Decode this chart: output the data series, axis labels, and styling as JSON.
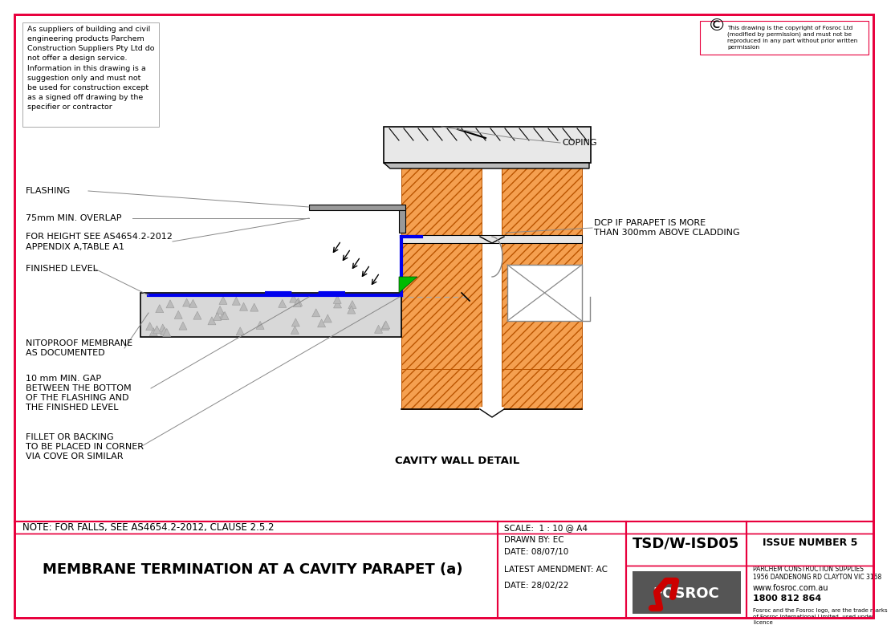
{
  "title": "MEMBRANE TERMINATION AT A CAVITY PARAPET (a)",
  "note": "NOTE: FOR FALLS, SEE AS4654.2-2012, CLAUSE 2.5.2",
  "scale": "SCALE:  1 : 10 @ A4",
  "drawn_by": "DRAWN BY: EC",
  "date": "DATE: 08/07/10",
  "latest_amendment": "LATEST AMENDMENT: AC",
  "date2": "DATE: 28/02/22",
  "drawing_number": "TSD/W-ISD05",
  "issue": "ISSUE NUMBER 5",
  "disclaimer_text": "As suppliers of building and civil\nengineering products Parchem\nConstruction Suppliers Pty Ltd do\nnot offer a design service.\nInformation in this drawing is a\nsuggestion only and must not\nbe used for construction except\nas a signed off drawing by the\nspecifier or contractor",
  "copyright_text": "This drawing is the copyright of Fosroc Ltd\n(modified by permission) and must not be\nreproduced in any part without prior written\npermission",
  "company_line1": "PARCHEM CONSTRUCTION SUPPLIES",
  "company_line2": "1956 DANDENONG RD CLAYTON VIC 3168",
  "website": "www.fosroc.com.au",
  "phone": "1800 812 864",
  "trademark": "Fosroc and the Fosroc logo, are the trade marks\nof Fosroc International Limited, used under\nlicence",
  "labels": {
    "coping": "COPING",
    "flashing": "FLASHING",
    "overlap": "75mm MIN. OVERLAP",
    "height_ref_1": "FOR HEIGHT SEE AS4654.2-2012",
    "height_ref_2": "APPENDIX A,TABLE A1",
    "finished_level": "FINISHED LEVEL",
    "membrane_1": "NITOPROOF MEMBRANE",
    "membrane_2": "AS DOCUMENTED",
    "gap_1": "10 mm MIN. GAP",
    "gap_2": "BETWEEN THE BOTTOM",
    "gap_3": "OF THE FLASHING AND",
    "gap_4": "THE FINISHED LEVEL",
    "fillet_1": "FILLET OR BACKING",
    "fillet_2": "TO BE PLACED IN CORNER",
    "fillet_3": "VIA COVE OR SIMILAR",
    "dcp_1": "DCP IF PARAPET IS MORE",
    "dcp_2": "THAN 300mm ABOVE CLADDING",
    "cavity": "CAVITY WALL DETAIL"
  },
  "border_color": "#e8003d",
  "bg_color": "#ffffff",
  "hatch_color": "#f5a050",
  "line_color": "#000000",
  "gray_color": "#888888",
  "blue_color": "#0000ee",
  "green_color": "#00bb00",
  "fosroc_red": "#cc0000",
  "fosroc_gray": "#555555",
  "concrete_color": "#e8e8e8",
  "slab_color": "#d8d8d8"
}
